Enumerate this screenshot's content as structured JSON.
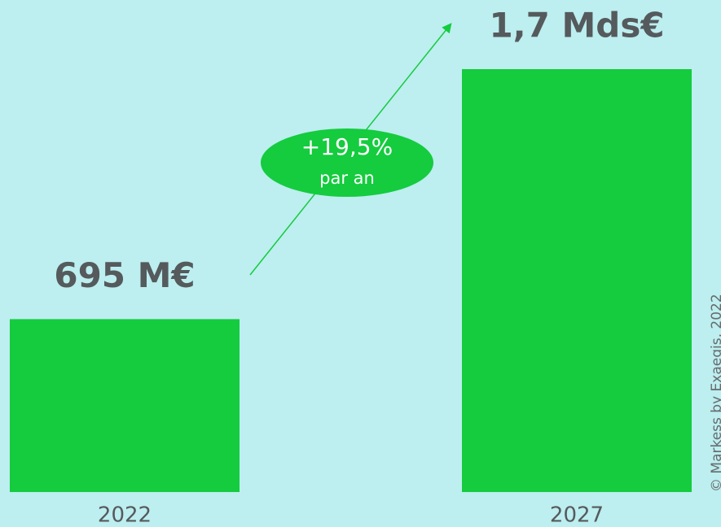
{
  "chart_data": {
    "type": "bar",
    "categories": [
      "2022",
      "2027"
    ],
    "values": [
      695,
      1700
    ],
    "value_labels": [
      "695 M€",
      "1,7 Mds€"
    ],
    "color": "#14cc3e",
    "annotation": {
      "growth": "+19,5%",
      "period": "par an"
    },
    "source": "© Markess by Exaegis, 2022"
  }
}
